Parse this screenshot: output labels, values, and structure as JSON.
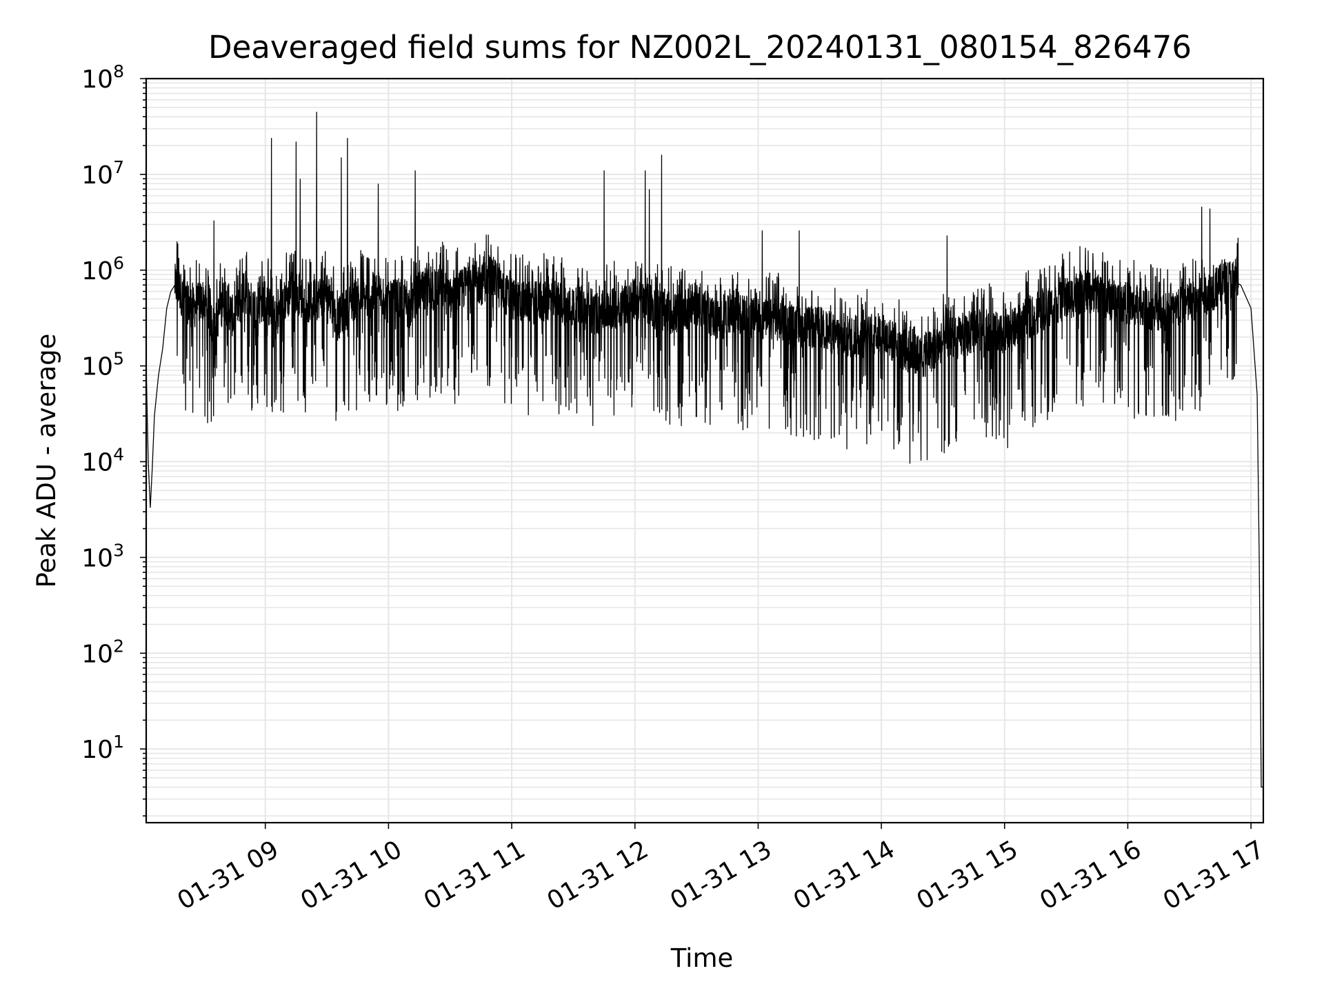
{
  "chart_data": {
    "type": "line",
    "title": "Deaveraged field sums for NZ002L_20240131_080154_826476",
    "xlabel": "Time",
    "ylabel": "Peak ADU - average",
    "yscale": "log",
    "ylim": [
      1.7,
      100000000
    ],
    "xlim": [
      "2024-01-31 08:02",
      "2024-01-31 17:06"
    ],
    "grid": true,
    "line_color": "#000000",
    "grid_color": "#e6e6e6",
    "x_ticks": [
      "2024-01-31 09:00",
      "2024-01-31 10:00",
      "2024-01-31 11:00",
      "2024-01-31 12:00",
      "2024-01-31 13:00",
      "2024-01-31 14:00",
      "2024-01-31 15:00",
      "2024-01-31 16:00",
      "2024-01-31 17:00"
    ],
    "x_tick_labels": [
      "01-31 09",
      "01-31 10",
      "01-31 11",
      "01-31 12",
      "01-31 13",
      "01-31 14",
      "01-31 15",
      "01-31 16",
      "01-31 17"
    ],
    "y_ticks": [
      10,
      100,
      1000,
      10000,
      100000,
      1000000,
      10000000,
      100000000
    ],
    "y_tick_base": "10",
    "y_tick_exponents": [
      "1",
      "2",
      "3",
      "4",
      "5",
      "6",
      "7",
      "8"
    ],
    "series": [
      {
        "x": [
          "2024-01-31 08:02",
          "2024-01-31 08:03",
          "2024-01-31 08:04",
          "2024-01-31 08:05",
          "2024-01-31 08:06",
          "2024-01-31 08:08",
          "2024-01-31 08:10",
          "2024-01-31 08:12",
          "2024-01-31 08:14",
          "2024-01-31 08:16",
          "2024-01-31 08:18",
          "2024-01-31 08:20",
          "2024-01-31 08:25",
          "2024-01-31 08:30",
          "2024-01-31 08:35",
          "2024-01-31 08:40",
          "2024-01-31 08:45",
          "2024-01-31 08:50",
          "2024-01-31 08:55",
          "2024-01-31 09:00",
          "2024-01-31 09:05",
          "2024-01-31 09:10",
          "2024-01-31 09:15",
          "2024-01-31 09:20",
          "2024-01-31 09:25",
          "2024-01-31 09:30",
          "2024-01-31 09:35",
          "2024-01-31 09:40",
          "2024-01-31 09:45",
          "2024-01-31 09:50",
          "2024-01-31 09:55",
          "2024-01-31 10:00",
          "2024-01-31 10:05",
          "2024-01-31 10:10",
          "2024-01-31 10:15",
          "2024-01-31 10:20",
          "2024-01-31 10:25",
          "2024-01-31 10:30",
          "2024-01-31 10:35",
          "2024-01-31 10:40",
          "2024-01-31 10:45",
          "2024-01-31 10:50",
          "2024-01-31 10:55",
          "2024-01-31 11:00",
          "2024-01-31 11:10",
          "2024-01-31 11:20",
          "2024-01-31 11:30",
          "2024-01-31 11:40",
          "2024-01-31 11:50",
          "2024-01-31 12:00",
          "2024-01-31 12:10",
          "2024-01-31 12:20",
          "2024-01-31 12:30",
          "2024-01-31 12:40",
          "2024-01-31 12:50",
          "2024-01-31 13:00",
          "2024-01-31 13:10",
          "2024-01-31 13:20",
          "2024-01-31 13:30",
          "2024-01-31 13:40",
          "2024-01-31 13:50",
          "2024-01-31 14:00",
          "2024-01-31 14:10",
          "2024-01-31 14:20",
          "2024-01-31 14:30",
          "2024-01-31 14:40",
          "2024-01-31 14:50",
          "2024-01-31 15:00",
          "2024-01-31 15:10",
          "2024-01-31 15:20",
          "2024-01-31 15:30",
          "2024-01-31 15:40",
          "2024-01-31 15:50",
          "2024-01-31 16:00",
          "2024-01-31 16:10",
          "2024-01-31 16:20",
          "2024-01-31 16:30",
          "2024-01-31 16:40",
          "2024-01-31 16:45",
          "2024-01-31 16:50",
          "2024-01-31 16:55",
          "2024-01-31 17:00",
          "2024-01-31 17:02",
          "2024-01-31 17:03",
          "2024-01-31 17:04",
          "2024-01-31 17:05",
          "2024-01-31 17:06"
        ],
        "y": [
          100000,
          10000,
          3300,
          9000,
          30000,
          80000,
          150000,
          400000,
          600000,
          700000,
          650000,
          500000,
          400000,
          500000,
          250000,
          500000,
          300000,
          600000,
          400000,
          500000,
          300000,
          500000,
          600000,
          450000,
          500000,
          600000,
          300000,
          400000,
          550000,
          500000,
          600000,
          450000,
          500000,
          400000,
          600000,
          550000,
          700000,
          500000,
          600000,
          800000,
          700000,
          900000,
          600000,
          500000,
          450000,
          500000,
          400000,
          350000,
          400000,
          500000,
          400000,
          350000,
          450000,
          300000,
          350000,
          300000,
          300000,
          250000,
          250000,
          200000,
          200000,
          220000,
          150000,
          120000,
          180000,
          200000,
          250000,
          200000,
          300000,
          400000,
          500000,
          600000,
          500000,
          450000,
          400000,
          350000,
          450000,
          600000,
          700000,
          800000,
          700000,
          400000,
          100000,
          50000,
          1000,
          4,
          4
        ],
        "spikes": [
          {
            "x": "2024-01-31 08:17",
            "y": 2000000
          },
          {
            "x": "2024-01-31 08:35",
            "y": 3300000
          },
          {
            "x": "2024-01-31 09:03",
            "y": 24000000
          },
          {
            "x": "2024-01-31 09:15",
            "y": 22000000
          },
          {
            "x": "2024-01-31 09:17",
            "y": 9000000
          },
          {
            "x": "2024-01-31 09:25",
            "y": 45000000
          },
          {
            "x": "2024-01-31 09:37",
            "y": 15000000
          },
          {
            "x": "2024-01-31 09:40",
            "y": 24000000
          },
          {
            "x": "2024-01-31 09:55",
            "y": 8000000
          },
          {
            "x": "2024-01-31 10:13",
            "y": 11000000
          },
          {
            "x": "2024-01-31 11:45",
            "y": 11000000
          },
          {
            "x": "2024-01-31 12:05",
            "y": 11000000
          },
          {
            "x": "2024-01-31 12:07",
            "y": 7000000
          },
          {
            "x": "2024-01-31 12:13",
            "y": 16000000
          },
          {
            "x": "2024-01-31 13:02",
            "y": 2600000
          },
          {
            "x": "2024-01-31 13:20",
            "y": 2600000
          },
          {
            "x": "2024-01-31 14:32",
            "y": 2300000
          },
          {
            "x": "2024-01-31 16:36",
            "y": 4600000
          },
          {
            "x": "2024-01-31 16:40",
            "y": 4400000
          }
        ],
        "dips": [
          {
            "x": "2024-01-31 08:40",
            "y": 60000
          },
          {
            "x": "2024-01-31 08:45",
            "y": 50000
          },
          {
            "x": "2024-01-31 09:30",
            "y": 60000
          },
          {
            "x": "2024-01-31 10:05",
            "y": 50000
          },
          {
            "x": "2024-01-31 11:55",
            "y": 55000
          },
          {
            "x": "2024-01-31 13:30",
            "y": 50000
          },
          {
            "x": "2024-01-31 13:55",
            "y": 35000
          },
          {
            "x": "2024-01-31 14:18",
            "y": 20000
          },
          {
            "x": "2024-01-31 14:58",
            "y": 27000
          }
        ]
      }
    ]
  }
}
